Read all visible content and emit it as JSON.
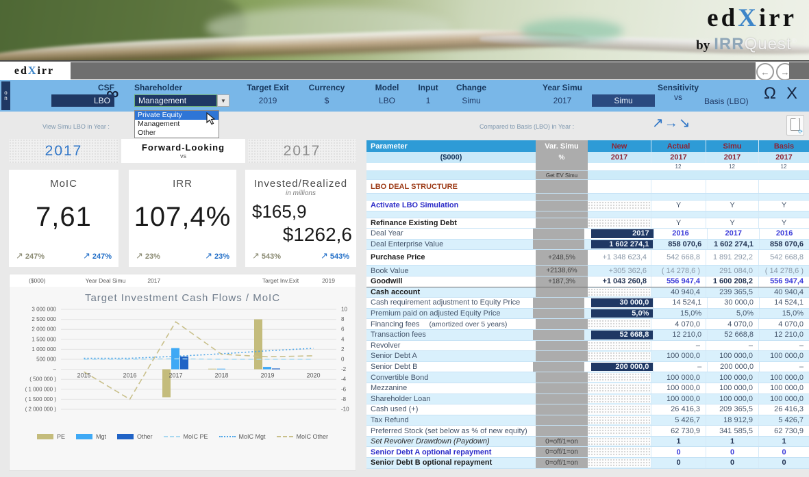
{
  "banner": {
    "logo_pre": "ed",
    "logo_x": "X",
    "logo_post": "irr",
    "by": "by",
    "irr": "IRR",
    "quest": "Quest",
    "reg": "®"
  },
  "tabbar": {
    "tab_pre": "ed",
    "tab_x": "X",
    "tab_post": "irr",
    "back": "←",
    "forward": "→"
  },
  "ribbon": {
    "side_tab_line1": "o",
    "side_tab_line2": "n",
    "infinity": "∞",
    "csf_label": "CSF",
    "csf_value": "LBO",
    "shareholder_label": "Shareholder",
    "shareholder_value": "Management",
    "shareholder_options": [
      "Private Equity",
      "Management",
      "Other"
    ],
    "shareholder_highlight": "Private Equity",
    "dropdown_arrow": "▼",
    "target_exit_label": "Target Exit",
    "target_exit_value": "2019",
    "currency_label": "Currency",
    "currency_value": "$",
    "model_label": "Model",
    "model_value": "LBO",
    "input_label": "Input",
    "input_value": "1",
    "change_label": "Change",
    "change_value": "Simu",
    "year_simu_label": "Year Simu",
    "year_simu_value": "2017",
    "simu_button": "Simu",
    "sensitivity_label": "Sensitivity",
    "sensitivity_vs": "vs",
    "sensitivity_value": "Basis (LBO)",
    "omega": "Ω",
    "close": "X"
  },
  "labels_row": {
    "left": "View Simu LBO in Year :",
    "right": "Compared to Basis (LBO) in Year :",
    "arrows": "↗→↘"
  },
  "kpi": {
    "header": {
      "left_year": "2017",
      "center_title": "Forward-Looking",
      "center_sub": "vs",
      "right_year": "2017"
    },
    "arrow": "↗",
    "cards": [
      {
        "title": "MoIC",
        "value": "7,61",
        "delta_left": "247%",
        "delta_right": "247%"
      },
      {
        "title": "IRR",
        "value": "107,4%",
        "delta_left": "23%",
        "delta_right": "23%"
      },
      {
        "title": "Invested/Realized",
        "subtitle": "in millions",
        "value1": "$165,9",
        "value2": "$1262,6",
        "delta_left": "543%",
        "delta_right": "543%"
      }
    ]
  },
  "chart_strip": {
    "unit": "($000)",
    "deal_label": "Year Deal Simu",
    "deal_year": "2017",
    "exit_label": "Target Inv.Exit",
    "exit_year": "2019"
  },
  "chart_data": {
    "type": "bar+line",
    "title": "Target Investment Cash Flows / MoIC",
    "categories": [
      "2015",
      "2016",
      "2017",
      "2018",
      "2019",
      "2020"
    ],
    "bar_axis": "left",
    "line_axis": "right",
    "y_left_range": [
      3000000,
      -2000000
    ],
    "y_right_range": [
      10,
      -10
    ],
    "y_left_labels": [
      "3 000 000",
      "2 500 000",
      "2 000 000",
      "1 500 000",
      "1 000 000",
      "500 000",
      "–",
      "( 500 000 )",
      "( 1 000 000 )",
      "( 1 500 000 )",
      "( 2 000 000 )"
    ],
    "y_right_labels": [
      "10",
      "8",
      "6",
      "4",
      "2",
      "0",
      "-2",
      "-4",
      "-6",
      "-8",
      "-10"
    ],
    "bar_series": [
      {
        "name": "PE",
        "color": "#C4BC7C",
        "values": [
          0,
          0,
          -1400000,
          30000,
          2500000,
          0
        ]
      },
      {
        "name": "Mgt",
        "color": "#3FA9F5",
        "values": [
          0,
          0,
          1060000,
          30000,
          120000,
          0
        ]
      },
      {
        "name": "Other",
        "color": "#2063C6",
        "values": [
          0,
          0,
          640000,
          0,
          40000,
          0
        ]
      }
    ],
    "line_series": [
      {
        "name": "MoIC PE",
        "color": "#A8D8F0",
        "dash": "7 5",
        "values": [
          0,
          0,
          0.1,
          0,
          0,
          0
        ]
      },
      {
        "name": "MoIC Mgt",
        "color": "#4AA4E8",
        "dash": "2 3",
        "values": [
          0.2,
          0.2,
          0.6,
          1.1,
          1.7,
          2.2
        ]
      },
      {
        "name": "MoIC Other",
        "color": "#C9C08B",
        "dash": "8 5",
        "values": [
          -2.5,
          -8,
          7.5,
          1.0,
          0.5,
          0.7
        ]
      }
    ],
    "legend": [
      {
        "label": "PE",
        "swatch": "bar",
        "color": "#C4BC7C"
      },
      {
        "label": "Mgt",
        "swatch": "bar",
        "color": "#3FA9F5"
      },
      {
        "label": "Other",
        "swatch": "bar",
        "color": "#2063C6"
      },
      {
        "label": "MoIC PE",
        "swatch": "dash",
        "color": "#A8D8F0"
      },
      {
        "label": "MoIC Mgt",
        "swatch": "dot",
        "color": "#4AA4E8"
      },
      {
        "label": "MoIC Other",
        "swatch": "dash",
        "color": "#C9C08B"
      }
    ]
  },
  "table": {
    "header": {
      "parameter": "Parameter",
      "parameter_sub": "($000)",
      "var": "Var. Simu",
      "var_sub": "%",
      "get_ev": "Get EV Simu",
      "cols": [
        {
          "name": "New",
          "year": "2017"
        },
        {
          "name": "Actual",
          "year": "2017"
        },
        {
          "name": "Simu",
          "year": "2017"
        },
        {
          "name": "Basis",
          "year": "2017"
        }
      ],
      "period": "12"
    },
    "rows": [
      {
        "label": "LBO DEAL STRUCTURE",
        "style": "section",
        "hatch": false
      },
      {
        "label": "",
        "style": "spacer",
        "shade": true,
        "hatch": false
      },
      {
        "label": "Activate LBO Simulation",
        "style": "lbl-blue",
        "hatch": true,
        "actual": "Y",
        "simu": "Y",
        "basis": "Y",
        "center": true
      },
      {
        "label": "",
        "style": "spacer",
        "shade": true,
        "hatch": false
      },
      {
        "label": "Refinance Existing Debt",
        "style": "lbl-bold",
        "hatch": true,
        "actual": "Y",
        "simu": "Y",
        "basis": "Y",
        "center": true
      },
      {
        "label": "Deal Year",
        "new": "2017",
        "newType": "sel",
        "actual": "2016",
        "simu": "2017",
        "basis": "2016",
        "valStyle": "v-blue",
        "center": true
      },
      {
        "label": "Deal Enterprise Value",
        "shade": true,
        "new": "1 602 274,1",
        "newType": "sel",
        "actual": "858 070,6",
        "simu": "1 602 274,1",
        "basis": "858 070,6",
        "valStyle": "v-bold"
      },
      {
        "label": "Purchase Price",
        "style": "lbl-bold tall",
        "var": "+248,5%",
        "new": "+1 348 623,4",
        "newType": "txt",
        "newStyle": "v-gray",
        "actual": "542 668,8",
        "simu": "1 891 292,2",
        "basis": "542 668,8",
        "valStyle": "v-gray"
      },
      {
        "label": "Book Value",
        "shade": true,
        "var": "+2138,6%",
        "new": "+305 362,6",
        "newType": "txt",
        "newStyle": "v-gray",
        "actual": "( 14 278,6 )",
        "simu": "291 084,0",
        "basis": "( 14 278,6 )",
        "valStyle": "v-gray"
      },
      {
        "label": "Goodwill",
        "style": "lbl-bold goodwill-row",
        "var": "+187,3%",
        "new": "+1 043 260,8",
        "newType": "txt",
        "newStyle": "v-bold",
        "actual": "556 947,4",
        "actualStyle": "v-blue",
        "simu": "1 600 208,2",
        "simuStyle": "v-bold",
        "basis": "556 947,4",
        "basisStyle": "v-blue"
      },
      {
        "label": "Cash account",
        "style": "lbl-bold",
        "shade": true,
        "hatch": true,
        "actual": "40 940,4",
        "simu": "239 365,5",
        "basis": "40 940,4"
      },
      {
        "label": "Cash requirement adjustment to Equity Price",
        "new": "30 000,0",
        "newType": "sel",
        "actual": "14 524,1",
        "simu": "30 000,0",
        "basis": "14 524,1"
      },
      {
        "label": "Premium paid on adjusted Equity Price",
        "shade": true,
        "new": "5,0%",
        "newType": "sel",
        "actual": "15,0%",
        "simu": "5,0%",
        "basis": "15,0%"
      },
      {
        "label": "Financing fees",
        "label2": "(amortized over 5 years)",
        "hatch": true,
        "actual": "4 070,0",
        "simu": "4 070,0",
        "basis": "4 070,0"
      },
      {
        "label": "Transaction fees",
        "shade": true,
        "new": "52 668,8",
        "newType": "sel",
        "actual": "12 210,0",
        "simu": "52 668,8",
        "basis": "12 210,0"
      },
      {
        "label": "Revolver",
        "hatch": true,
        "actual": "–",
        "simu": "–",
        "basis": "–"
      },
      {
        "label": "Senior Debt A",
        "shade": true,
        "hatch": true,
        "actual": "100 000,0",
        "simu": "100 000,0",
        "basis": "100 000,0"
      },
      {
        "label": "Senior Debt B",
        "new": "200 000,0",
        "newType": "sel",
        "actual": "–",
        "simu": "200 000,0",
        "basis": "–"
      },
      {
        "label": "Convertible Bond",
        "shade": true,
        "hatch": true,
        "actual": "100 000,0",
        "simu": "100 000,0",
        "basis": "100 000,0"
      },
      {
        "label": "Mezzanine",
        "hatch": true,
        "actual": "100 000,0",
        "simu": "100 000,0",
        "basis": "100 000,0"
      },
      {
        "label": "Shareholder Loan",
        "shade": true,
        "hatch": true,
        "actual": "100 000,0",
        "simu": "100 000,0",
        "basis": "100 000,0"
      },
      {
        "label": "Cash used (+)",
        "hatch": true,
        "actual": "26 416,3",
        "simu": "209 365,5",
        "basis": "26 416,3"
      },
      {
        "label": "Tax Refund",
        "shade": true,
        "hatch": true,
        "actual": "5 426,7",
        "simu": "18 912,9",
        "basis": "5 426,7"
      },
      {
        "label": "Preferred Stock (set below as % of new equity)",
        "hatch": true,
        "actual": "62 730,9",
        "simu": "341 585,5",
        "basis": "62 730,9"
      },
      {
        "label": "Set Revolver Drawdown (Paydown)",
        "style": "lbl-italic",
        "shade": true,
        "var": "0=off/1=on",
        "hatch": true,
        "actual": "1",
        "simu": "1",
        "basis": "1",
        "valStyle": "v-bold",
        "center": true
      },
      {
        "label": "Senior Debt A optional repayment",
        "style": "lbl-blue",
        "var": "0=off/1=on",
        "hatch": true,
        "actual": "0",
        "simu": "0",
        "basis": "0",
        "valStyle": "v-blue",
        "center": true
      },
      {
        "label": "Senior Debt B optional repayment",
        "style": "lbl-bold",
        "shade": true,
        "var": "0=off/1=on",
        "hatch": true,
        "actual": "0",
        "simu": "0",
        "basis": "0",
        "valStyle": "v-bold",
        "center": true
      }
    ]
  }
}
